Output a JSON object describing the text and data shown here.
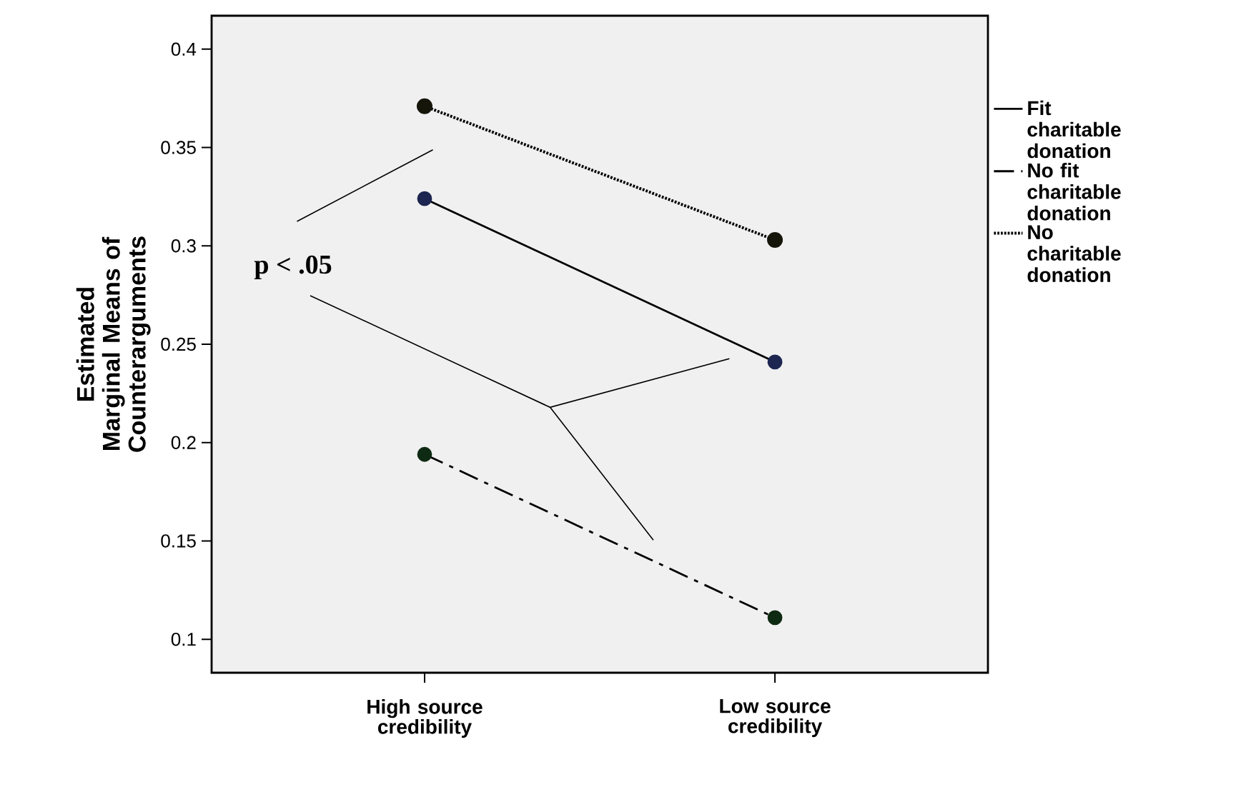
{
  "chart_data": {
    "type": "line",
    "ylabel": "Estimated Marginal Means of Counterarguments",
    "categories": [
      "High source credibility",
      "Low source credibility"
    ],
    "series": [
      {
        "name": "Fit charitable donation",
        "color": "#1c2650",
        "values": [
          0.324,
          0.241
        ],
        "line_style": "solid"
      },
      {
        "name": "No fit charitable donation",
        "color": "#0f2a12",
        "values": [
          0.194,
          0.111
        ],
        "line_style": "dashdot"
      },
      {
        "name": "No charitable donation",
        "color": "#15150a",
        "values": [
          0.371,
          0.303
        ],
        "line_style": "dotted"
      }
    ],
    "ylim": [
      0.083,
      0.417
    ],
    "yticks": [
      0.1,
      0.15,
      0.2,
      0.25,
      0.3,
      0.35,
      0.4
    ],
    "annotations": [
      "p < .05"
    ],
    "marker": "circle",
    "legend": "right",
    "grid": false
  }
}
